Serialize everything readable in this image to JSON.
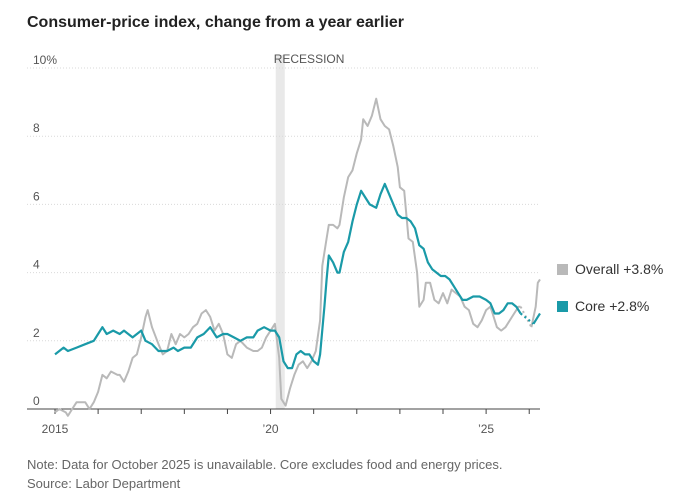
{
  "chart_data": {
    "type": "line",
    "title": "Consumer-price index, change from a year earlier",
    "ylabel": "",
    "xlabel": "",
    "y_unit_label": "10%",
    "ylim": [
      0,
      10
    ],
    "y_ticks": [
      0,
      2,
      4,
      6,
      8,
      10
    ],
    "xlim": [
      2015.0,
      2026.25
    ],
    "x_ticks": [
      {
        "value": 2015,
        "label": "2015"
      },
      {
        "value": 2020,
        "label": "’20"
      },
      {
        "value": 2025,
        "label": "’25"
      }
    ],
    "grid": true,
    "legend_position": "right",
    "recession": {
      "label": "RECESSION",
      "start": 2020.12,
      "end": 2020.33
    },
    "series": [
      {
        "name": "Overall +3.8%",
        "color": "#b9b9b9",
        "points": [
          [
            2015.0,
            -0.1
          ],
          [
            2015.1,
            0.0
          ],
          [
            2015.25,
            -0.1
          ],
          [
            2015.3,
            -0.2
          ],
          [
            2015.4,
            0.0
          ],
          [
            2015.5,
            0.2
          ],
          [
            2015.6,
            0.2
          ],
          [
            2015.7,
            0.2
          ],
          [
            2015.8,
            0.0
          ],
          [
            2015.9,
            0.2
          ],
          [
            2016.0,
            0.5
          ],
          [
            2016.1,
            1.0
          ],
          [
            2016.2,
            0.9
          ],
          [
            2016.3,
            1.1
          ],
          [
            2016.45,
            1.0
          ],
          [
            2016.5,
            1.0
          ],
          [
            2016.6,
            0.8
          ],
          [
            2016.7,
            1.1
          ],
          [
            2016.8,
            1.5
          ],
          [
            2016.9,
            1.6
          ],
          [
            2017.0,
            2.1
          ],
          [
            2017.1,
            2.7
          ],
          [
            2017.15,
            2.9
          ],
          [
            2017.25,
            2.4
          ],
          [
            2017.4,
            1.9
          ],
          [
            2017.5,
            1.6
          ],
          [
            2017.6,
            1.7
          ],
          [
            2017.7,
            2.2
          ],
          [
            2017.8,
            1.9
          ],
          [
            2017.9,
            2.2
          ],
          [
            2018.0,
            2.1
          ],
          [
            2018.1,
            2.2
          ],
          [
            2018.2,
            2.4
          ],
          [
            2018.3,
            2.5
          ],
          [
            2018.4,
            2.8
          ],
          [
            2018.5,
            2.9
          ],
          [
            2018.6,
            2.7
          ],
          [
            2018.7,
            2.3
          ],
          [
            2018.8,
            2.5
          ],
          [
            2018.9,
            2.2
          ],
          [
            2019.0,
            1.6
          ],
          [
            2019.1,
            1.5
          ],
          [
            2019.2,
            1.9
          ],
          [
            2019.3,
            2.0
          ],
          [
            2019.45,
            1.8
          ],
          [
            2019.6,
            1.7
          ],
          [
            2019.7,
            1.7
          ],
          [
            2019.8,
            1.8
          ],
          [
            2019.9,
            2.1
          ],
          [
            2020.0,
            2.3
          ],
          [
            2020.1,
            2.5
          ],
          [
            2020.2,
            1.5
          ],
          [
            2020.25,
            0.3
          ],
          [
            2020.35,
            0.1
          ],
          [
            2020.45,
            0.6
          ],
          [
            2020.55,
            1.0
          ],
          [
            2020.65,
            1.3
          ],
          [
            2020.75,
            1.4
          ],
          [
            2020.85,
            1.2
          ],
          [
            2020.95,
            1.4
          ],
          [
            2021.05,
            1.7
          ],
          [
            2021.15,
            2.6
          ],
          [
            2021.2,
            4.2
          ],
          [
            2021.3,
            5.0
          ],
          [
            2021.35,
            5.4
          ],
          [
            2021.45,
            5.4
          ],
          [
            2021.55,
            5.3
          ],
          [
            2021.6,
            5.4
          ],
          [
            2021.7,
            6.2
          ],
          [
            2021.8,
            6.8
          ],
          [
            2021.9,
            7.0
          ],
          [
            2022.0,
            7.5
          ],
          [
            2022.1,
            7.9
          ],
          [
            2022.15,
            8.5
          ],
          [
            2022.25,
            8.3
          ],
          [
            2022.35,
            8.6
          ],
          [
            2022.45,
            9.1
          ],
          [
            2022.55,
            8.5
          ],
          [
            2022.65,
            8.3
          ],
          [
            2022.75,
            8.2
          ],
          [
            2022.85,
            7.7
          ],
          [
            2022.95,
            7.1
          ],
          [
            2023.0,
            6.5
          ],
          [
            2023.1,
            6.4
          ],
          [
            2023.2,
            5.0
          ],
          [
            2023.3,
            4.9
          ],
          [
            2023.4,
            4.0
          ],
          [
            2023.45,
            3.0
          ],
          [
            2023.55,
            3.2
          ],
          [
            2023.6,
            3.7
          ],
          [
            2023.7,
            3.7
          ],
          [
            2023.8,
            3.2
          ],
          [
            2023.9,
            3.1
          ],
          [
            2024.0,
            3.4
          ],
          [
            2024.1,
            3.1
          ],
          [
            2024.2,
            3.5
          ],
          [
            2024.3,
            3.4
          ],
          [
            2024.4,
            3.3
          ],
          [
            2024.5,
            3.0
          ],
          [
            2024.6,
            2.9
          ],
          [
            2024.7,
            2.5
          ],
          [
            2024.8,
            2.4
          ],
          [
            2024.9,
            2.6
          ],
          [
            2025.0,
            2.9
          ],
          [
            2025.1,
            3.0
          ],
          [
            2025.15,
            2.8
          ],
          [
            2025.25,
            2.4
          ],
          [
            2025.35,
            2.3
          ],
          [
            2025.45,
            2.4
          ],
          [
            2025.6,
            2.7
          ],
          [
            2025.7,
            2.9
          ],
          [
            2025.75,
            3.0
          ],
          [
            2025.8,
            3.0
          ],
          [
            2025.9,
            2.7
          ],
          [
            2026.0,
            2.5
          ],
          [
            2026.05,
            2.4
          ],
          [
            2026.15,
            3.0
          ],
          [
            2026.2,
            3.7
          ],
          [
            2026.25,
            3.8
          ]
        ]
      },
      {
        "name": "Core +2.8%",
        "color": "#1a9aa8",
        "points": [
          [
            2015.0,
            1.6
          ],
          [
            2015.2,
            1.8
          ],
          [
            2015.3,
            1.7
          ],
          [
            2015.5,
            1.8
          ],
          [
            2015.7,
            1.9
          ],
          [
            2015.9,
            2.0
          ],
          [
            2016.0,
            2.2
          ],
          [
            2016.1,
            2.4
          ],
          [
            2016.2,
            2.2
          ],
          [
            2016.35,
            2.3
          ],
          [
            2016.5,
            2.2
          ],
          [
            2016.6,
            2.3
          ],
          [
            2016.7,
            2.2
          ],
          [
            2016.8,
            2.1
          ],
          [
            2016.9,
            2.2
          ],
          [
            2017.0,
            2.3
          ],
          [
            2017.1,
            2.0
          ],
          [
            2017.25,
            1.9
          ],
          [
            2017.4,
            1.7
          ],
          [
            2017.6,
            1.7
          ],
          [
            2017.75,
            1.8
          ],
          [
            2017.85,
            1.7
          ],
          [
            2018.0,
            1.8
          ],
          [
            2018.15,
            1.8
          ],
          [
            2018.3,
            2.1
          ],
          [
            2018.45,
            2.2
          ],
          [
            2018.6,
            2.4
          ],
          [
            2018.75,
            2.1
          ],
          [
            2018.9,
            2.2
          ],
          [
            2019.0,
            2.2
          ],
          [
            2019.15,
            2.1
          ],
          [
            2019.3,
            2.0
          ],
          [
            2019.45,
            2.1
          ],
          [
            2019.6,
            2.1
          ],
          [
            2019.7,
            2.3
          ],
          [
            2019.85,
            2.4
          ],
          [
            2020.0,
            2.3
          ],
          [
            2020.1,
            2.3
          ],
          [
            2020.2,
            2.1
          ],
          [
            2020.3,
            1.4
          ],
          [
            2020.4,
            1.2
          ],
          [
            2020.5,
            1.2
          ],
          [
            2020.6,
            1.6
          ],
          [
            2020.7,
            1.7
          ],
          [
            2020.8,
            1.6
          ],
          [
            2020.9,
            1.6
          ],
          [
            2021.0,
            1.4
          ],
          [
            2021.1,
            1.3
          ],
          [
            2021.15,
            1.6
          ],
          [
            2021.25,
            3.0
          ],
          [
            2021.3,
            3.8
          ],
          [
            2021.35,
            4.5
          ],
          [
            2021.45,
            4.3
          ],
          [
            2021.55,
            4.0
          ],
          [
            2021.6,
            4.0
          ],
          [
            2021.7,
            4.6
          ],
          [
            2021.8,
            4.9
          ],
          [
            2021.9,
            5.5
          ],
          [
            2022.0,
            6.0
          ],
          [
            2022.1,
            6.4
          ],
          [
            2022.2,
            6.2
          ],
          [
            2022.3,
            6.0
          ],
          [
            2022.45,
            5.9
          ],
          [
            2022.55,
            6.3
          ],
          [
            2022.65,
            6.6
          ],
          [
            2022.75,
            6.3
          ],
          [
            2022.85,
            6.0
          ],
          [
            2022.95,
            5.7
          ],
          [
            2023.05,
            5.6
          ],
          [
            2023.15,
            5.6
          ],
          [
            2023.25,
            5.5
          ],
          [
            2023.35,
            5.3
          ],
          [
            2023.45,
            4.8
          ],
          [
            2023.55,
            4.7
          ],
          [
            2023.65,
            4.3
          ],
          [
            2023.75,
            4.1
          ],
          [
            2023.85,
            4.0
          ],
          [
            2023.95,
            3.9
          ],
          [
            2024.05,
            3.9
          ],
          [
            2024.15,
            3.8
          ],
          [
            2024.25,
            3.6
          ],
          [
            2024.35,
            3.4
          ],
          [
            2024.45,
            3.2
          ],
          [
            2024.55,
            3.2
          ],
          [
            2024.7,
            3.3
          ],
          [
            2024.85,
            3.3
          ],
          [
            2025.0,
            3.2
          ],
          [
            2025.1,
            3.1
          ],
          [
            2025.2,
            2.8
          ],
          [
            2025.3,
            2.8
          ],
          [
            2025.4,
            2.9
          ],
          [
            2025.5,
            3.1
          ],
          [
            2025.6,
            3.1
          ],
          [
            2025.7,
            3.0
          ],
          [
            2025.8,
            2.8
          ],
          [
            2025.9,
            2.6
          ],
          [
            2026.0,
            2.6
          ],
          [
            2026.1,
            2.5
          ],
          [
            2026.2,
            2.7
          ],
          [
            2026.25,
            2.8
          ]
        ]
      }
    ],
    "missing_data_gap": {
      "start": 2025.8,
      "end": 2026.05
    }
  },
  "footnote": {
    "note": "Note: Data for October 2025 is unavailable. Core excludes food and energy prices.",
    "source": "Source: Labor Department"
  }
}
